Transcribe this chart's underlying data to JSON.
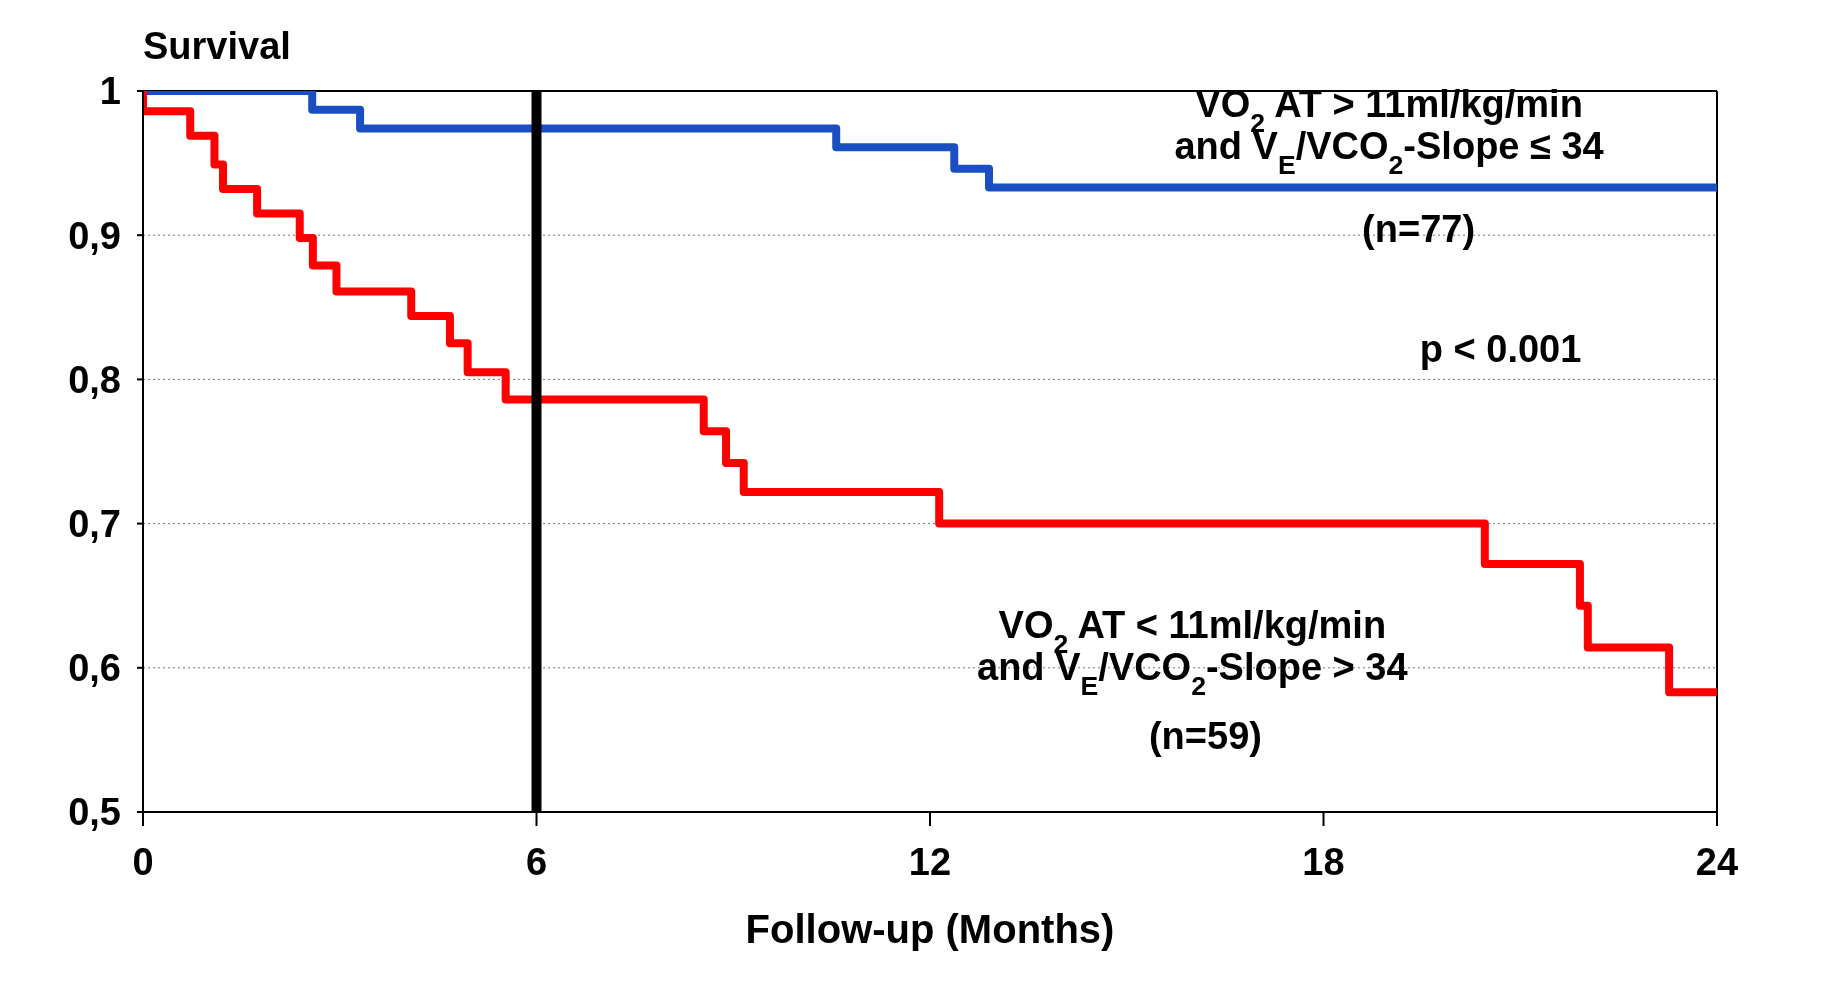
{
  "chart_data": {
    "type": "step",
    "ylabel": "Survival",
    "xlabel": "Follow-up (Months)",
    "xlim": [
      0,
      24
    ],
    "xticks": [
      0,
      6,
      12,
      18,
      24
    ],
    "ylim": [
      0.5,
      1
    ],
    "yticks": [
      {
        "value": 0.5,
        "label": "0,5"
      },
      {
        "value": 0.6,
        "label": "0,6"
      },
      {
        "value": 0.7,
        "label": "0,7"
      },
      {
        "value": 0.8,
        "label": "0,8"
      },
      {
        "value": 0.9,
        "label": "0,9"
      },
      {
        "value": 1,
        "label": "1"
      }
    ],
    "grid": "y",
    "line_style": "solid",
    "marker": "none",
    "series": [
      {
        "name": "VO$_{2}$ AT > 11ml/kg/min\nand V$_{E}$/VCO$_{2}$-Slope ≤ 34",
        "color": "#1a4fc4",
        "x": [
          0,
          2.58,
          3.31,
          10.57,
          12.37,
          12.9,
          24
        ],
        "values": [
          1,
          0.987,
          0.974,
          0.961,
          0.946,
          0.933,
          0.933
        ]
      },
      {
        "name": "VO$_{2}$ AT < 11ml/kg/min\nand V$_{E}$/VCO$_{2}$-Slope > 34",
        "color": "#ff0000",
        "x": [
          0,
          0,
          0.72,
          1.09,
          1.22,
          1.74,
          2.39,
          2.59,
          2.95,
          4.09,
          4.68,
          4.95,
          5.53,
          8.55,
          8.89,
          9.16,
          12.14,
          20.46,
          21.91,
          22.03,
          23.27,
          24
        ],
        "values": [
          1,
          0.986,
          0.969,
          0.949,
          0.932,
          0.915,
          0.898,
          0.879,
          0.861,
          0.844,
          0.825,
          0.805,
          0.786,
          0.764,
          0.742,
          0.722,
          0.7,
          0.672,
          0.643,
          0.614,
          0.583,
          0.583
        ]
      }
    ],
    "ref_lines": [
      {
        "axis": "x",
        "value": 6,
        "color": "#000000"
      }
    ],
    "annotations": [
      "(n=77)",
      "p < 0.001",
      "(n=59)"
    ]
  }
}
